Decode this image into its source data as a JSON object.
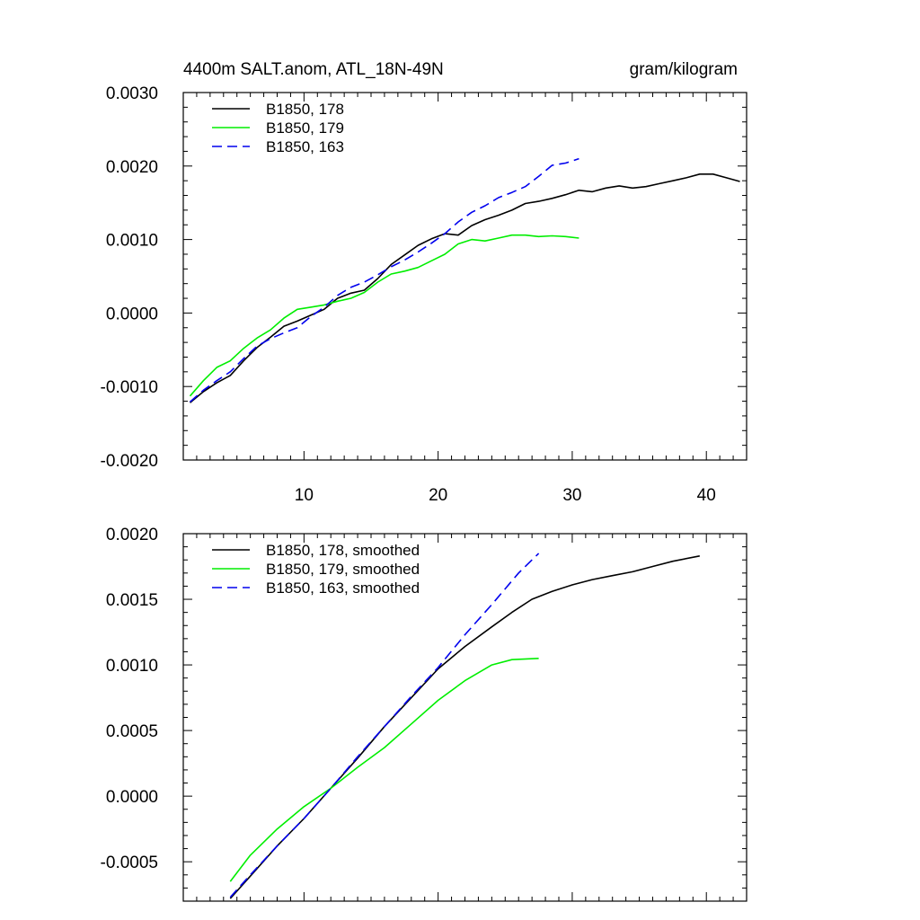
{
  "chart_data": [
    {
      "type": "line",
      "title": "4400m SALT.anom, ATL_18N-49N",
      "units": "gram/kilogram",
      "xlim": [
        1,
        43
      ],
      "ylim": [
        -0.002,
        0.003
      ],
      "xticks": [
        10,
        20,
        30,
        40
      ],
      "xtick_labels": [
        "10",
        "20",
        "30",
        "40"
      ],
      "yticks": [
        -0.002,
        -0.001,
        0.0,
        0.001,
        0.002,
        0.003
      ],
      "ytick_labels": [
        "-0.0020",
        "-0.0010",
        "0.0000",
        "0.0010",
        "0.0020",
        "0.0030"
      ],
      "legend_position": "top-left",
      "series": [
        {
          "name": "B1850, 178",
          "color": "#000000",
          "dash": "solid",
          "x": [
            1.5,
            2.5,
            3.5,
            4.5,
            5.5,
            6.5,
            7.5,
            8.5,
            9.5,
            10.5,
            11.5,
            12.5,
            13.5,
            14.5,
            15.5,
            16.5,
            17.5,
            18.5,
            19.5,
            20.5,
            21.5,
            22.5,
            23.5,
            24.5,
            25.5,
            26.5,
            27.5,
            28.5,
            29.5,
            30.5,
            31.5,
            32.5,
            33.5,
            34.5,
            35.5,
            36.5,
            37.5,
            38.5,
            39.5,
            40.5,
            41.5,
            42.5
          ],
          "values": [
            -0.00122,
            -0.00107,
            -0.00095,
            -0.00085,
            -0.00065,
            -0.00047,
            -0.00033,
            -0.00018,
            -0.00011,
            -3e-05,
            5e-05,
            0.0002,
            0.00027,
            0.00031,
            0.00047,
            0.00066,
            0.00079,
            0.00092,
            0.00101,
            0.00108,
            0.00106,
            0.00119,
            0.00127,
            0.00133,
            0.0014,
            0.00149,
            0.00152,
            0.00156,
            0.00161,
            0.00167,
            0.00165,
            0.0017,
            0.00173,
            0.0017,
            0.00172,
            0.00176,
            0.0018,
            0.00184,
            0.00189,
            0.00189,
            0.00184,
            0.00179
          ]
        },
        {
          "name": "B1850, 179",
          "color": "#00ee00",
          "dash": "solid",
          "x": [
            1.5,
            2.5,
            3.5,
            4.5,
            5.5,
            6.5,
            7.5,
            8.5,
            9.5,
            10.5,
            11.5,
            12.5,
            13.5,
            14.5,
            15.5,
            16.5,
            17.5,
            18.5,
            19.5,
            20.5,
            21.5,
            22.5,
            23.5,
            24.5,
            25.5,
            26.5,
            27.5,
            28.5,
            29.5,
            30.5
          ],
          "values": [
            -0.00113,
            -0.00092,
            -0.00074,
            -0.00065,
            -0.00048,
            -0.00034,
            -0.00023,
            -7e-05,
            5e-05,
            8e-05,
            0.00011,
            0.00016,
            0.0002,
            0.00028,
            0.00042,
            0.00053,
            0.00057,
            0.00062,
            0.00071,
            0.0008,
            0.00094,
            0.001,
            0.00098,
            0.00102,
            0.00106,
            0.00106,
            0.00104,
            0.00105,
            0.00104,
            0.00102
          ]
        },
        {
          "name": "B1850, 163",
          "color": "#0000ee",
          "dash": "dashed",
          "x": [
            1.5,
            2.5,
            3.5,
            4.5,
            5.5,
            6.5,
            7.5,
            8.5,
            9.5,
            10.5,
            11.5,
            12.5,
            13.5,
            14.5,
            15.5,
            16.5,
            17.5,
            18.5,
            19.5,
            20.5,
            21.5,
            22.5,
            23.5,
            24.5,
            25.5,
            26.5,
            27.5,
            28.5,
            29.5,
            30.5
          ],
          "values": [
            -0.00121,
            -0.00105,
            -0.00092,
            -0.0008,
            -0.00062,
            -0.00045,
            -0.00035,
            -0.00027,
            -0.0002,
            -5e-05,
            8e-05,
            0.00024,
            0.00035,
            0.00042,
            0.00052,
            0.00063,
            0.00072,
            0.00083,
            0.00095,
            0.00108,
            0.00124,
            0.00137,
            0.00146,
            0.00157,
            0.00164,
            0.00172,
            0.00186,
            0.00201,
            0.00204,
            0.0021
          ]
        }
      ]
    },
    {
      "type": "line",
      "title": "",
      "xlim": [
        1,
        43
      ],
      "ylim": [
        -0.0008,
        0.002
      ],
      "xticks": [
        10,
        20,
        30,
        40
      ],
      "xtick_labels": [],
      "yticks": [
        -0.0005,
        0.0,
        0.0005,
        0.001,
        0.0015,
        0.002
      ],
      "ytick_labels": [
        "-0.0005",
        "0.0000",
        "0.0005",
        "0.0010",
        "0.0015",
        "0.0020"
      ],
      "legend_position": "top-left",
      "series": [
        {
          "name": "B1850, 178, smoothed",
          "color": "#000000",
          "dash": "solid",
          "x": [
            4.5,
            6,
            8,
            10,
            12,
            14,
            16,
            18,
            20,
            22,
            24,
            25.5,
            27,
            28.5,
            30,
            31.5,
            33,
            34.5,
            36,
            37.5,
            39.5
          ],
          "values": [
            -0.00078,
            -0.00061,
            -0.00038,
            -0.00017,
            6e-05,
            0.00029,
            0.00053,
            0.00075,
            0.00097,
            0.00114,
            0.00129,
            0.0014,
            0.0015,
            0.00156,
            0.00161,
            0.00165,
            0.00168,
            0.00171,
            0.00175,
            0.00179,
            0.00183
          ]
        },
        {
          "name": "B1850, 179, smoothed",
          "color": "#00ee00",
          "dash": "solid",
          "x": [
            4.5,
            6,
            8,
            10,
            12,
            14,
            16,
            18,
            20,
            22,
            24,
            25.5,
            27.5
          ],
          "values": [
            -0.00065,
            -0.00045,
            -0.00025,
            -8e-05,
            6e-05,
            0.00022,
            0.00037,
            0.00055,
            0.00073,
            0.00088,
            0.001,
            0.00104,
            0.00105
          ]
        },
        {
          "name": "B1850, 163, smoothed",
          "color": "#0000ee",
          "dash": "dashed",
          "x": [
            4.5,
            6,
            8,
            10,
            12,
            14,
            16,
            18,
            20,
            22,
            24,
            26,
            27.5
          ],
          "values": [
            -0.00077,
            -0.0006,
            -0.00038,
            -0.00017,
            6e-05,
            0.0003,
            0.00053,
            0.00076,
            0.00098,
            0.00123,
            0.00146,
            0.0017,
            0.00185
          ]
        }
      ]
    }
  ]
}
